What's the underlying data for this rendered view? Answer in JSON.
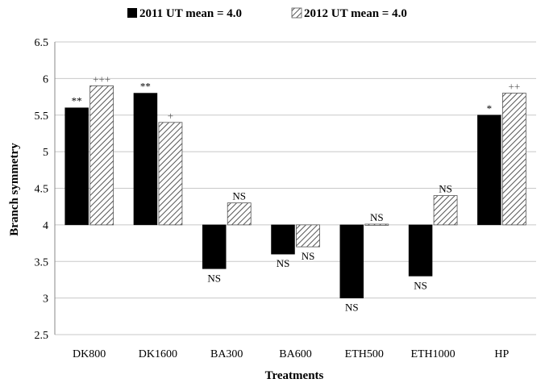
{
  "chart_data": {
    "type": "bar",
    "baseline": 4.0,
    "xlabel": "Treatments",
    "ylabel": "Branch symmetry",
    "ylim": [
      2.5,
      6.5
    ],
    "yticks": [
      "2.5",
      "3",
      "3.5",
      "4",
      "4.5",
      "5",
      "5.5",
      "6",
      "6.5"
    ],
    "grid": true,
    "legend_position": "top",
    "categories": [
      "DK800",
      "DK1600",
      "BA300",
      "BA600",
      "ETH500",
      "ETH1000",
      "HP"
    ],
    "series": [
      {
        "name": "2011 UT mean = 4.0",
        "color": "#000000",
        "pattern": "solid",
        "values": [
          5.6,
          5.8,
          3.4,
          3.6,
          3.0,
          3.3,
          5.5
        ],
        "annotations": [
          "**",
          "**",
          "NS",
          "NS",
          "NS",
          "NS",
          "*"
        ]
      },
      {
        "name": "2012 UT mean = 4.0",
        "color": "#ffffff",
        "pattern": "hatched",
        "values": [
          5.9,
          5.4,
          4.3,
          3.7,
          4.01,
          4.4,
          5.8
        ],
        "annotations": [
          "+++",
          "+",
          "NS",
          "NS",
          "NS",
          "NS",
          "++"
        ]
      }
    ]
  }
}
